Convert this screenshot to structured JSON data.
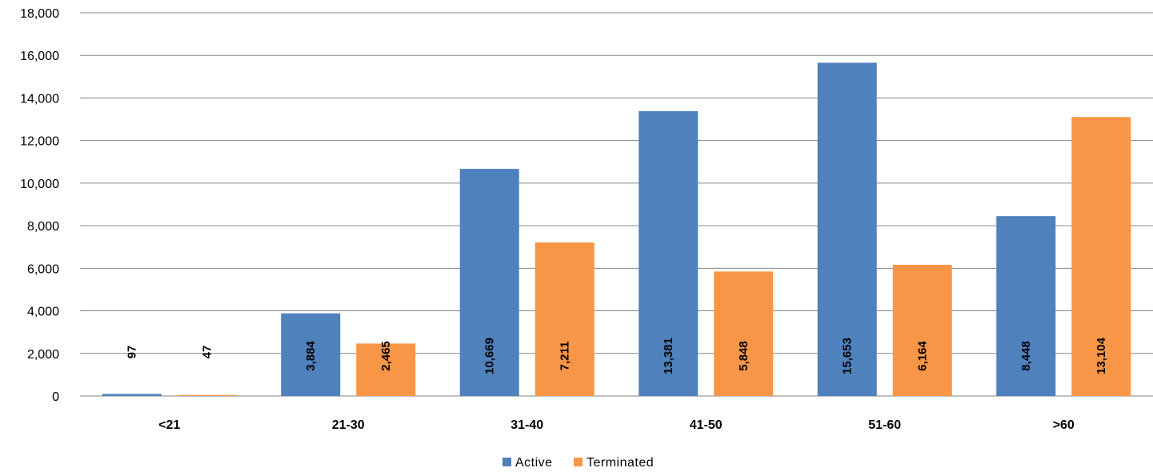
{
  "chart_data": {
    "type": "bar",
    "categories": [
      "<21",
      "21-30",
      "31-40",
      "41-50",
      "51-60",
      ">60"
    ],
    "series": [
      {
        "name": "Active",
        "values": [
          97,
          3884,
          10669,
          13381,
          15653,
          8448
        ],
        "color": "#4f81bd"
      },
      {
        "name": "Terminated",
        "values": [
          47,
          2465,
          7211,
          5848,
          6164,
          13104
        ],
        "color": "#f79646"
      }
    ],
    "data_labels": [
      [
        "97",
        "3,884",
        "10,669",
        "13,381",
        "15,653",
        "8,448"
      ],
      [
        "47",
        "2,465",
        "7,211",
        "5,848",
        "6,164",
        "13,104"
      ]
    ],
    "y_ticks": [
      0,
      2000,
      4000,
      6000,
      8000,
      10000,
      12000,
      14000,
      16000,
      18000
    ],
    "y_tick_labels": [
      "0",
      "2,000",
      "4,000",
      "6,000",
      "8,000",
      "10,000",
      "12,000",
      "14,000",
      "16,000",
      "18,000"
    ],
    "ylim": [
      0,
      18000
    ],
    "grid": true,
    "grid_color": "#868686",
    "legend_position": "bottom-center",
    "title": "",
    "xlabel": "",
    "ylabel": ""
  }
}
